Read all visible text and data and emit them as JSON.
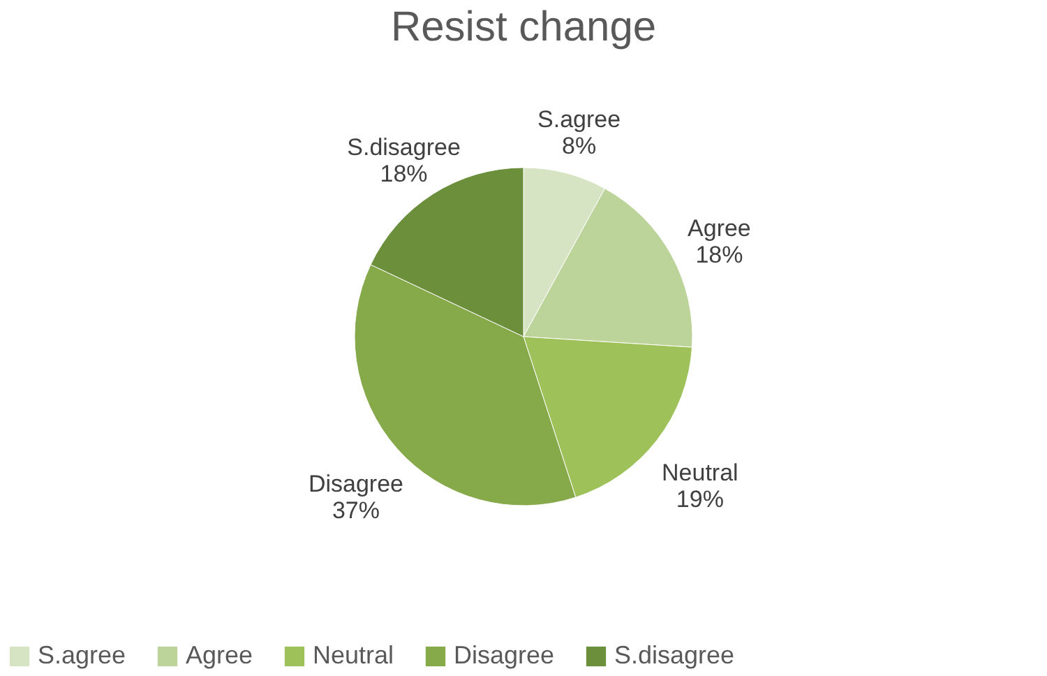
{
  "chart_data": {
    "type": "pie",
    "title": "Resist change",
    "categories": [
      "S.agree",
      "Agree",
      "Neutral",
      "Disagree",
      "S.disagree"
    ],
    "values": [
      8,
      18,
      19,
      37,
      18
    ],
    "value_labels": [
      "8%",
      "18%",
      "19%",
      "37%",
      "18%"
    ],
    "colors": [
      "#d7e4c3",
      "#bcd49a",
      "#9ec259",
      "#86a94a",
      "#6b8f3a"
    ],
    "legend": "bottom"
  }
}
